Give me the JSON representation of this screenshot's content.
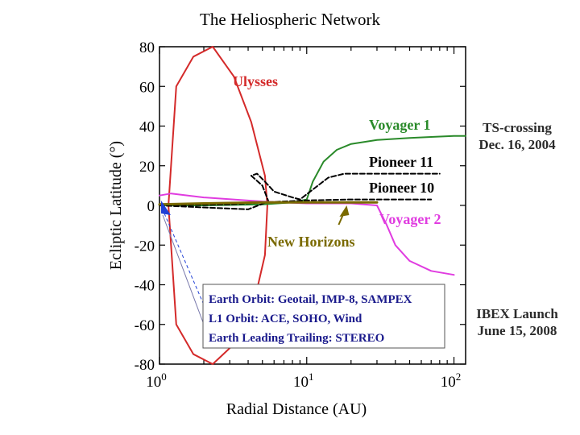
{
  "page": {
    "title": "The Heliospheric Network",
    "ts_note": [
      "TS-crossing",
      "Dec. 16, 2004"
    ],
    "ibex_note": [
      "IBEX Launch",
      "June 15, 2008"
    ]
  },
  "chart_data": {
    "type": "line",
    "title": "The Heliospheric Network",
    "xlabel": "Radial Distance (AU)",
    "ylabel": "Ecliptic Latitude (°)",
    "xscale": "log",
    "xlim": [
      1,
      120
    ],
    "ylim": [
      -80,
      80
    ],
    "x_ticks": [
      {
        "value": 1,
        "base": "10",
        "exp": "0"
      },
      {
        "value": 10,
        "base": "10",
        "exp": "1"
      },
      {
        "value": 100,
        "base": "10",
        "exp": "2"
      }
    ],
    "y_ticks": [
      80,
      60,
      40,
      20,
      0,
      -20,
      -40,
      -60,
      -80
    ],
    "series": [
      {
        "name": "Ulysses",
        "color": "#d42a2a",
        "style": "solid",
        "x": [
          1.3,
          1.7,
          2.3,
          3.2,
          4.2,
          5.2,
          5.4,
          5.2,
          4.2,
          3.2,
          2.3,
          1.7,
          1.3,
          1.15,
          1.3
        ],
        "y": [
          60,
          75,
          80,
          65,
          42,
          15,
          0,
          -25,
          -55,
          -70,
          -80,
          -75,
          -60,
          0,
          60
        ]
      },
      {
        "name": "Voyager 1",
        "color": "#2a8a2a",
        "style": "solid",
        "x": [
          1,
          2,
          5,
          8,
          10,
          11,
          13,
          16,
          20,
          30,
          50,
          70,
          100,
          120
        ],
        "y": [
          0,
          0,
          0.5,
          1.5,
          3,
          12,
          22,
          28,
          31,
          33,
          34,
          34.5,
          35,
          35
        ]
      },
      {
        "name": "Pioneer 11",
        "color": "#000000",
        "style": "dashed",
        "x": [
          1,
          2,
          4,
          5.5,
          5,
          4.2,
          4.6,
          5.2,
          6,
          8,
          9,
          11,
          14,
          18,
          30,
          50,
          80
        ],
        "y": [
          0,
          -1,
          -2,
          2,
          10,
          15,
          16,
          12,
          7,
          4,
          3,
          8,
          14,
          16,
          16,
          16,
          16
        ]
      },
      {
        "name": "Pioneer 10",
        "color": "#000000",
        "style": "dashed",
        "x": [
          1,
          3,
          5,
          10,
          20,
          40,
          70
        ],
        "y": [
          0,
          0.5,
          1.5,
          2.5,
          3,
          3,
          3
        ]
      },
      {
        "name": "Voyager 2",
        "color": "#e03ce0",
        "style": "solid",
        "x": [
          1,
          1.2,
          2,
          5,
          10,
          20,
          30,
          35,
          40,
          50,
          70,
          100
        ],
        "y": [
          5,
          6,
          4,
          2,
          1,
          1,
          0,
          -10,
          -20,
          -28,
          -33,
          -35
        ]
      },
      {
        "name": "New Horizons",
        "color": "#7a6a00",
        "style": "solid",
        "x": [
          1,
          2,
          5,
          8,
          10,
          15,
          20,
          30
        ],
        "y": [
          0.5,
          1,
          1.5,
          1.5,
          1.5,
          1.5,
          1.5,
          1.5
        ]
      }
    ],
    "new_horizons_arrow": {
      "x": 18,
      "y": 0
    },
    "earth_orbit_marker": {
      "x": 1,
      "y": 0,
      "color": "#1f3fd6"
    },
    "legend_box": {
      "placement": "bottom-left",
      "lines": [
        "Earth Orbit: Geotail, IMP-8, SAMPEX",
        "L1 Orbit: ACE, SOHO, Wind",
        "Earth Leading Trailing: STEREO"
      ]
    },
    "grid": false
  }
}
